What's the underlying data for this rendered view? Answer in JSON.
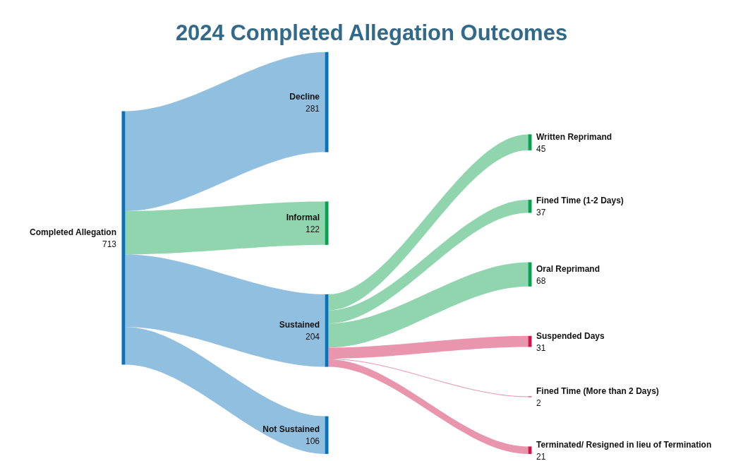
{
  "chart_data": {
    "type": "other",
    "data_labels": true,
    "title": "2024 Completed Allegation Outcomes",
    "categories": [
      "Completed Allegation",
      "Decline",
      "Informal",
      "Sustained",
      "Not Sustained",
      "Written Reprimand",
      "Fined Time (1-2 Days)",
      "Oral Reprimand",
      "Suspended Days",
      "Fined Time (More than 2 Days)",
      "Terminated/ Resigned in lieu of Termination"
    ],
    "values": [
      713,
      281,
      122,
      204,
      106,
      45,
      37,
      68,
      31,
      2,
      21
    ],
    "colors": [
      "#0a72b8",
      "#0a72b8",
      "#0aa14e",
      "#0a72b8",
      "#0a72b8",
      "#0aa14e",
      "#0aa14e",
      "#0aa14e",
      "#d0144c",
      "#d0144c",
      "#d0144c"
    ],
    "cells": [
      [
        null,
        true,
        true,
        true,
        true,
        null,
        null,
        null,
        null,
        null,
        null
      ],
      [
        null,
        null,
        null,
        null,
        null,
        null,
        null,
        null,
        null,
        null,
        null
      ],
      [
        null,
        null,
        null,
        null,
        null,
        null,
        null,
        null,
        null,
        null,
        null
      ],
      [
        null,
        null,
        null,
        null,
        null,
        true,
        true,
        true,
        true,
        true,
        true
      ],
      [
        null,
        null,
        null,
        null,
        null,
        null,
        null,
        null,
        null,
        null,
        null
      ],
      [
        null,
        null,
        null,
        null,
        null,
        null,
        null,
        null,
        null,
        null,
        null
      ],
      [
        null,
        null,
        null,
        null,
        null,
        null,
        null,
        null,
        null,
        null,
        null
      ],
      [
        null,
        null,
        null,
        null,
        null,
        null,
        null,
        null,
        null,
        null,
        null
      ],
      [
        null,
        null,
        null,
        null,
        null,
        null,
        null,
        null,
        null,
        null,
        null
      ],
      [
        null,
        null,
        null,
        null,
        null,
        null,
        null,
        null,
        null,
        null,
        null
      ],
      [
        null,
        null,
        null,
        null,
        null,
        null,
        null,
        null,
        null,
        null,
        null
      ]
    ]
  }
}
